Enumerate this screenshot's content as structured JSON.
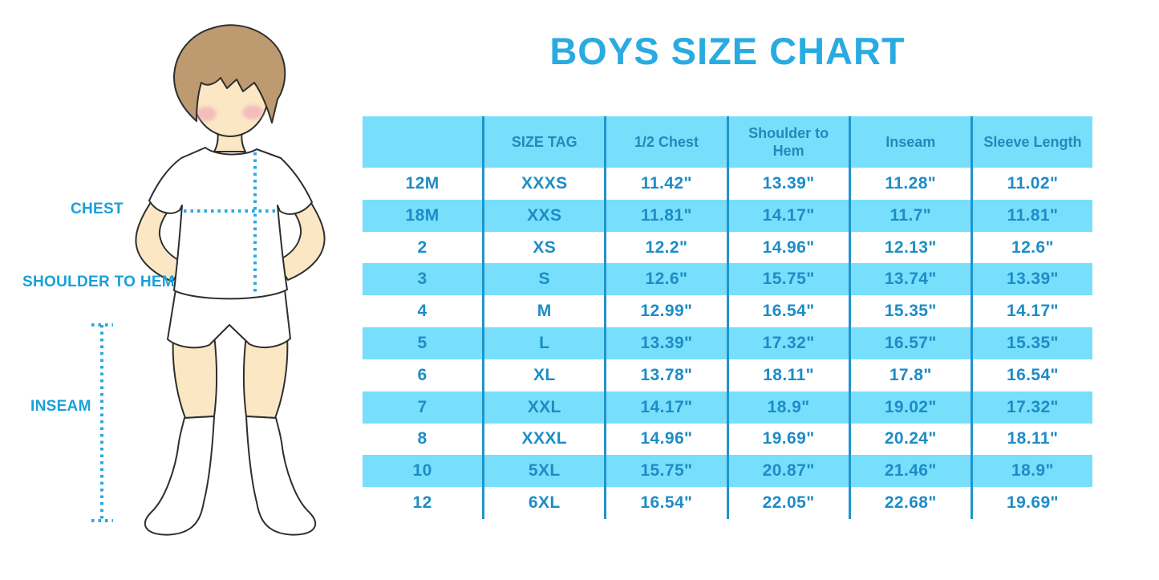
{
  "title": "BOYS SIZE CHART",
  "figure": {
    "description": "cartoon boy with hands on hips wearing white t-shirt, shorts and knee socks, with dotted measurement guides",
    "labels": {
      "chest": "CHEST",
      "shoulder_to_hem": "SHOULDER TO HEM",
      "inseam": "INSEAM"
    }
  },
  "chart_data": {
    "type": "table",
    "title": "BOYS SIZE CHART",
    "units": "inches",
    "columns": [
      "",
      "SIZE TAG",
      "1/2 Chest",
      "Shoulder to Hem",
      "Inseam",
      "Sleeve Length"
    ],
    "rows": [
      [
        "12M",
        "XXXS",
        "11.42\"",
        "13.39\"",
        "11.28\"",
        "11.02\""
      ],
      [
        "18M",
        "XXS",
        "11.81\"",
        "14.17\"",
        "11.7\"",
        "11.81\""
      ],
      [
        "2",
        "XS",
        "12.2\"",
        "14.96\"",
        "12.13\"",
        "12.6\""
      ],
      [
        "3",
        "S",
        "12.6\"",
        "15.75\"",
        "13.74\"",
        "13.39\""
      ],
      [
        "4",
        "M",
        "12.99\"",
        "16.54\"",
        "15.35\"",
        "14.17\""
      ],
      [
        "5",
        "L",
        "13.39\"",
        "17.32\"",
        "16.57\"",
        "15.35\""
      ],
      [
        "6",
        "XL",
        "13.78\"",
        "18.11\"",
        "17.8\"",
        "16.54\""
      ],
      [
        "7",
        "XXL",
        "14.17\"",
        "18.9\"",
        "19.02\"",
        "17.32\""
      ],
      [
        "8",
        "XXXL",
        "14.96\"",
        "19.69\"",
        "20.24\"",
        "18.11\""
      ],
      [
        "10",
        "5XL",
        "15.75\"",
        "20.87\"",
        "21.46\"",
        "18.9\""
      ],
      [
        "12",
        "6XL",
        "16.54\"",
        "22.05\"",
        "22.68\"",
        "19.69\""
      ]
    ],
    "layout": {
      "stripe_pattern": "header blue, then data rows alternate white/blue starting with white",
      "grid": "vertical column separators only, no outer border",
      "legend": "none"
    }
  },
  "colors": {
    "title_blue": "#29abe2",
    "table_text_blue": "#1d8cc7",
    "header_text_blue": "#2488ba",
    "stripe_blue": "#77dffb",
    "grid_line_blue": "#2193cc",
    "label_blue": "#18a0da",
    "dotted_line_blue": "#2aa9e1",
    "skin": "#fbe7c4",
    "hair_brown": "#bd9a6f",
    "blush_pink": "#efa0b4"
  }
}
